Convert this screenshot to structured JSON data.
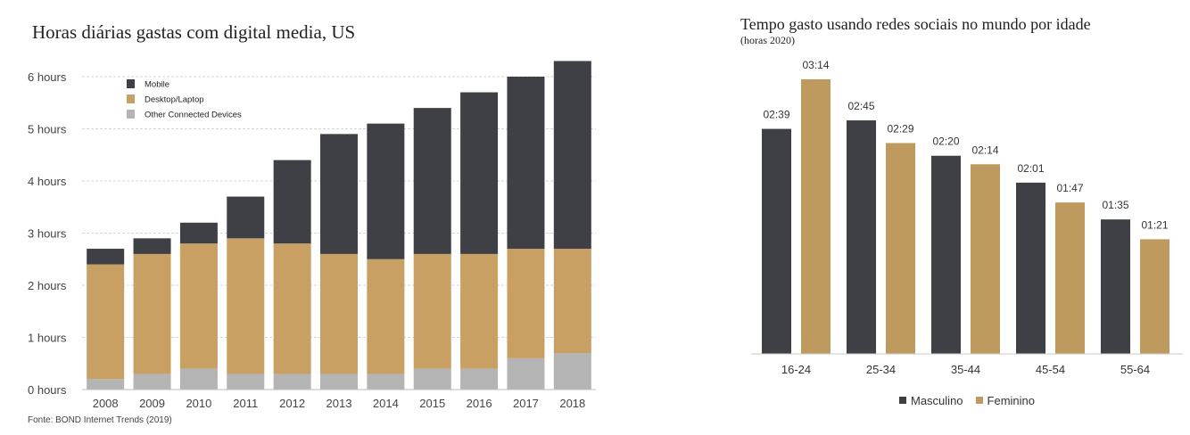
{
  "left_chart": {
    "title": "Horas diárias gastas com digital media, US",
    "source": "Fonte: BOND Internet Trends (2019)"
  },
  "right_chart": {
    "title": "Tempo gasto usando redes sociais no mundo por idade",
    "subtitle": "(horas 2020)"
  },
  "chart_data": [
    {
      "type": "bar",
      "stacked": true,
      "title": "Horas diárias gastas com digital media, US",
      "categories": [
        "2008",
        "2009",
        "2010",
        "2011",
        "2012",
        "2013",
        "2014",
        "2015",
        "2016",
        "2017",
        "2018"
      ],
      "series": [
        {
          "name": "Other Connected Devices",
          "color": "#b4b4b4",
          "values": [
            0.2,
            0.3,
            0.4,
            0.3,
            0.3,
            0.3,
            0.3,
            0.4,
            0.4,
            0.6,
            0.7
          ]
        },
        {
          "name": "Desktop/Laptop",
          "color": "#c9a063",
          "values": [
            2.2,
            2.3,
            2.4,
            2.6,
            2.5,
            2.3,
            2.2,
            2.2,
            2.2,
            2.1,
            2.0
          ]
        },
        {
          "name": "Mobile",
          "color": "#3f4045",
          "values": [
            0.3,
            0.3,
            0.4,
            0.8,
            1.6,
            2.3,
            2.6,
            2.8,
            3.1,
            3.3,
            3.6
          ]
        }
      ],
      "ylim": [
        0,
        6.3
      ],
      "yticks": [
        {
          "value": 0,
          "label": "0 hours"
        },
        {
          "value": 1,
          "label": "1 hours"
        },
        {
          "value": 2,
          "label": "2 hours"
        },
        {
          "value": 3,
          "label": "3 hours"
        },
        {
          "value": 4,
          "label": "4 hours"
        },
        {
          "value": 5,
          "label": "5 hours"
        },
        {
          "value": 6,
          "label": "6 hours"
        }
      ],
      "grid": true,
      "legend_position": "top-left"
    },
    {
      "type": "bar",
      "title": "Tempo gasto usando redes sociais no mundo por idade",
      "subtitle": "(horas 2020)",
      "categories": [
        "16-24",
        "25-34",
        "35-44",
        "45-54",
        "55-64"
      ],
      "series": [
        {
          "name": "Masculino",
          "color": "#3f4045",
          "values": [
            159,
            165,
            140,
            121,
            95
          ],
          "labels": [
            "02:39",
            "02:45",
            "02:20",
            "02:01",
            "01:35"
          ]
        },
        {
          "name": "Feminino",
          "color": "#bf9a5e",
          "values": [
            194,
            149,
            134,
            107,
            81
          ],
          "labels": [
            "03:14",
            "02:29",
            "02:14",
            "01:47",
            "01:21"
          ]
        }
      ],
      "unit": "minutes",
      "ylim": [
        0,
        194
      ],
      "grid": false,
      "legend_position": "bottom"
    }
  ]
}
